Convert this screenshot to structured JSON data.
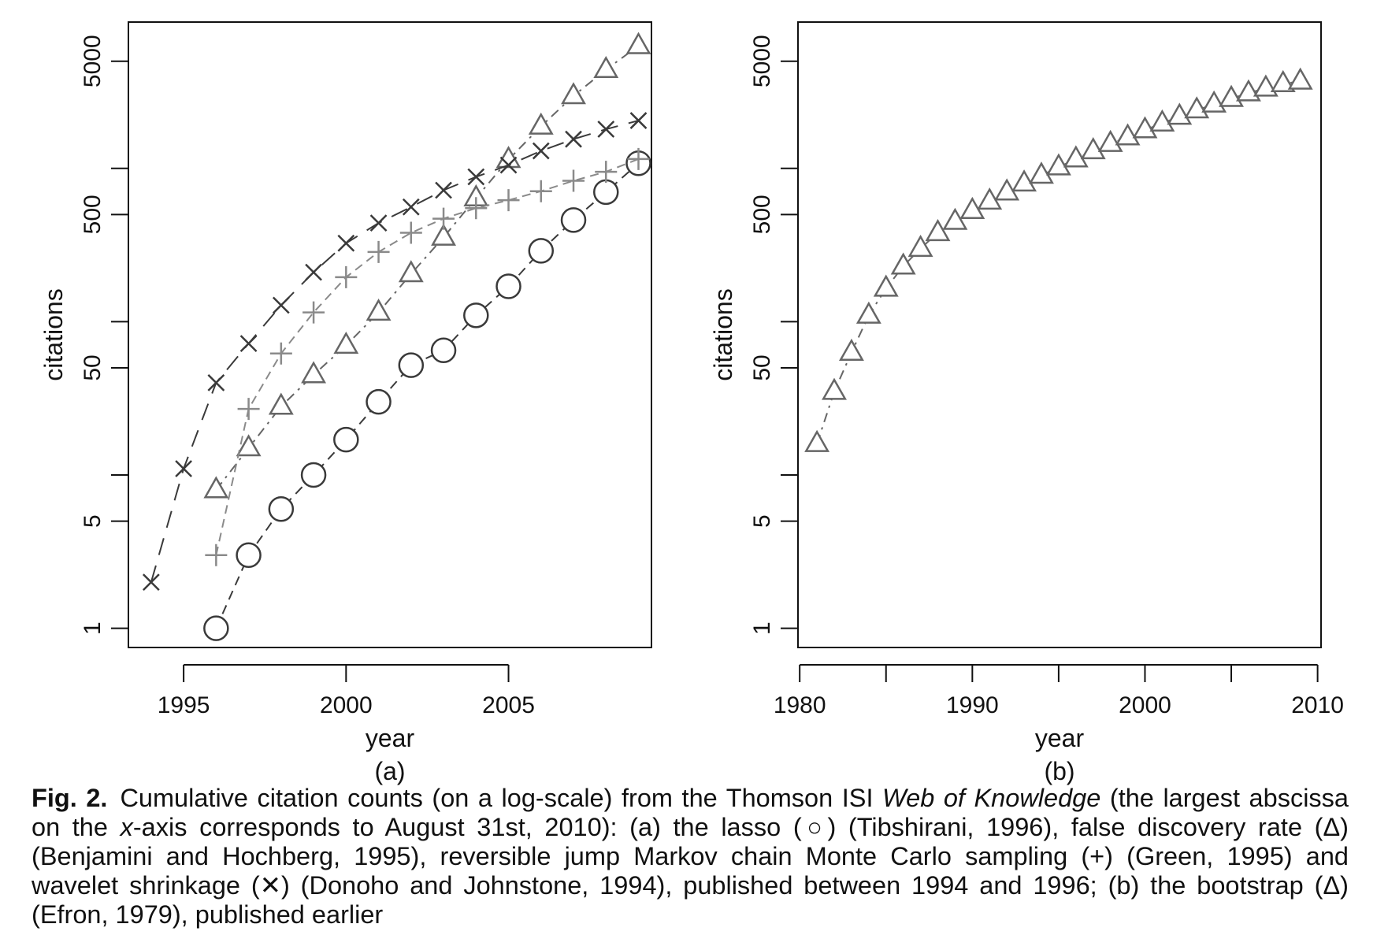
{
  "chart_data": [
    {
      "type": "scatter",
      "panel_label": "(a)",
      "xlabel": "year",
      "ylabel": "citations",
      "y_scale": "log",
      "xlim": [
        1993.3,
        2009.4
      ],
      "ylim": [
        0.75,
        9000
      ],
      "x_ticks": [
        1995,
        2000,
        2005
      ],
      "y_ticks": [
        1,
        5,
        50,
        500,
        5000
      ],
      "y_minor_ticks": [
        10,
        100,
        1000
      ],
      "colors": {
        "dark": "#3a3a3a",
        "gray": "#8a8a8a"
      },
      "series": [
        {
          "marker": "circle",
          "color": "#3a3a3a",
          "x": [
            1996,
            1997,
            1998,
            1999,
            2000,
            2001,
            2002,
            2003,
            2004,
            2005,
            2006,
            2007,
            2008,
            2009
          ],
          "values": [
            1,
            3,
            6,
            10,
            17,
            30,
            52,
            65,
            110,
            170,
            290,
            460,
            700,
            1080
          ]
        },
        {
          "marker": "triangle",
          "color": "#666666",
          "x": [
            1996,
            1997,
            1998,
            1999,
            2000,
            2001,
            2002,
            2003,
            2004,
            2005,
            2006,
            2007,
            2008,
            2009
          ],
          "values": [
            8,
            15,
            28,
            45,
            70,
            115,
            205,
            355,
            640,
            1140,
            1880,
            2970,
            4400,
            6300
          ]
        },
        {
          "marker": "plus",
          "color": "#8a8a8a",
          "x": [
            1996,
            1997,
            1998,
            1999,
            2000,
            2001,
            2002,
            2003,
            2004,
            2005,
            2006,
            2007,
            2008,
            2009
          ],
          "values": [
            3,
            27,
            62,
            115,
            195,
            285,
            380,
            470,
            550,
            620,
            710,
            830,
            950,
            1150
          ]
        },
        {
          "marker": "x",
          "color": "#3a3a3a",
          "x": [
            1994,
            1995,
            1996,
            1997,
            1998,
            1999,
            2000,
            2001,
            2002,
            2003,
            2004,
            2005,
            2006,
            2007,
            2008,
            2009
          ],
          "values": [
            2,
            11,
            40,
            72,
            128,
            210,
            325,
            440,
            560,
            720,
            880,
            1050,
            1300,
            1550,
            1800,
            2050
          ]
        }
      ]
    },
    {
      "type": "scatter",
      "panel_label": "(b)",
      "xlabel": "year",
      "ylabel": "citations",
      "y_scale": "log",
      "xlim": [
        1979.9,
        2010.2
      ],
      "ylim": [
        0.75,
        9000
      ],
      "x_ticks": [
        1980,
        1990,
        2000,
        2010
      ],
      "x_minor_ticks": [
        1985,
        1995,
        2005
      ],
      "y_ticks": [
        1,
        5,
        50,
        500,
        5000
      ],
      "y_minor_ticks": [
        10,
        100,
        1000
      ],
      "series": [
        {
          "marker": "triangle",
          "color": "#666666",
          "x": [
            1981,
            1982,
            1983,
            1984,
            1985,
            1986,
            1987,
            1988,
            1989,
            1990,
            1991,
            1992,
            1993,
            1994,
            1995,
            1996,
            1997,
            1998,
            1999,
            2000,
            2001,
            2002,
            2003,
            2004,
            2005,
            2006,
            2007,
            2008,
            2009
          ],
          "values": [
            16,
            35,
            63,
            110,
            165,
            230,
            300,
            380,
            450,
            530,
            610,
            700,
            800,
            900,
            1020,
            1150,
            1300,
            1450,
            1600,
            1780,
            1970,
            2180,
            2400,
            2620,
            2850,
            3100,
            3330,
            3560,
            3700
          ]
        }
      ]
    }
  ],
  "caption": {
    "fig_num": "Fig. 2.",
    "text_1": "Cumulative citation counts (on a log-scale) from the Thomson ISI ",
    "italic_1": "Web of Knowledge",
    "text_2": " (the largest abscissa on the ",
    "italic_2": "x",
    "text_3": "-axis corresponds to August 31st, 2010): (a) the lasso (○) (Tibshirani, 1996), false discovery rate (Δ) (Benjamini and Hochberg, 1995), reversible jump Markov chain Monte Carlo sampling (+) (Green, 1995) and wavelet shrinkage (✕) (Donoho and Johnstone, 1994), published between 1994 and 1996; (b) the bootstrap (Δ) (Efron, 1979), published earlier"
  }
}
